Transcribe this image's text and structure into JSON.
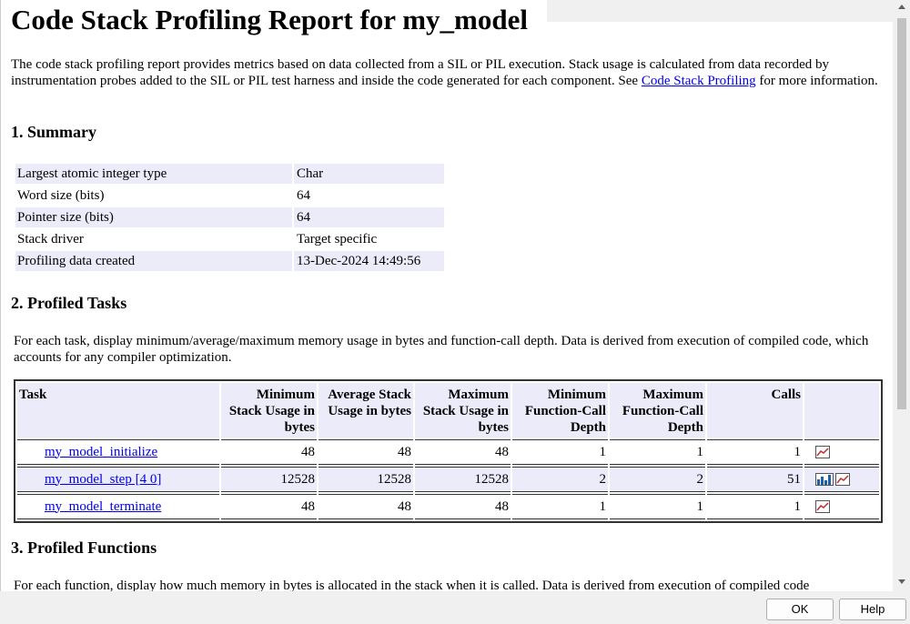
{
  "header": {
    "title": "Code Stack Profiling Report for my_model"
  },
  "intro": {
    "text": "The code stack profiling report provides metrics based on data collected from a SIL or PIL execution. Stack usage is calculated from data recorded by instrumentation probes added to the SIL or PIL test harness and inside the code generated for each component. See ",
    "link": "Code Stack Profiling",
    "after": " for more information."
  },
  "summary": {
    "heading": "1. Summary",
    "rows": [
      [
        "Largest atomic integer type",
        "Char"
      ],
      [
        "Word size (bits)",
        "64"
      ],
      [
        "Pointer size (bits)",
        "64"
      ],
      [
        "Stack driver",
        "Target specific"
      ],
      [
        "Profiling data created",
        "13-Dec-2024 14:49:56"
      ]
    ]
  },
  "tasks": {
    "heading": "2. Profiled Tasks",
    "description": "For each task, display minimum/average/maximum memory usage in bytes and function-call depth. Data is derived from execution of compiled code, which accounts for any compiler optimization.",
    "columns": [
      "Task",
      "Minimum Stack Usage in bytes",
      "Average Stack Usage in bytes",
      "Maximum Stack Usage in bytes",
      "Minimum Function-Call Depth",
      "Maximum Function-Call Depth",
      "Calls"
    ],
    "rows": [
      [
        "my_model_initialize",
        48,
        48,
        48,
        1,
        1,
        1
      ],
      [
        "my_model_step [4 0]",
        12528,
        12528,
        12528,
        2,
        2,
        51
      ],
      [
        "my_model_terminate",
        48,
        48,
        48,
        1,
        1,
        1
      ]
    ]
  },
  "functions": {
    "heading": "3. Profiled Functions",
    "description": "For each function, display how much memory in bytes is allocated in the stack when it is called. Data is derived from execution of compiled code"
  },
  "buttons": {
    "ok": "OK",
    "help": "Help"
  }
}
